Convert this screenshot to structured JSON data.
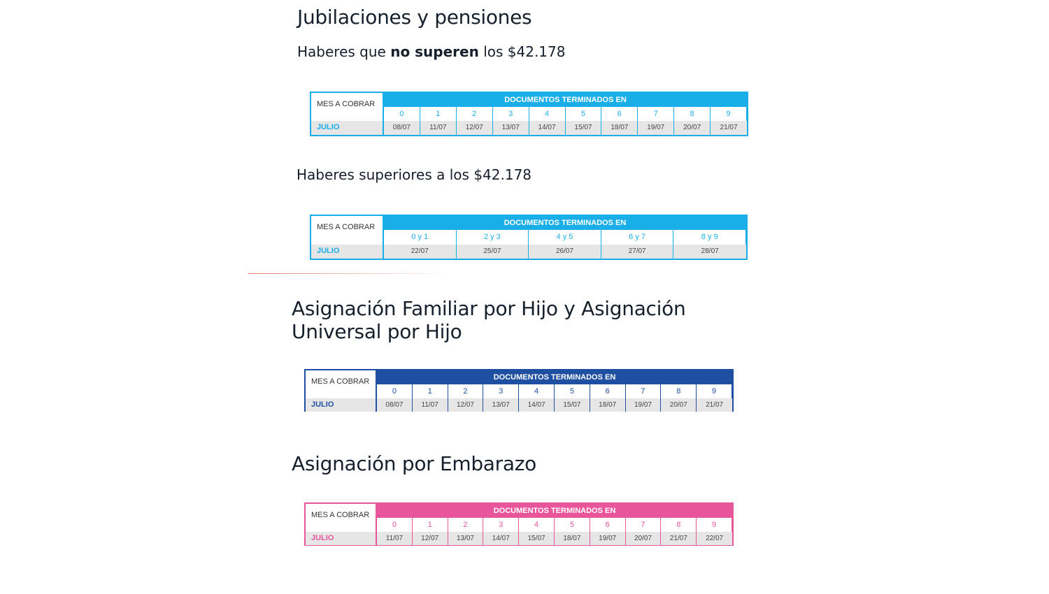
{
  "sections": {
    "jubilaciones": {
      "title": "Jubilaciones y pensiones",
      "sub1": {
        "pre": "Haberes que ",
        "bold": "no superen",
        "post": " los $42.178"
      },
      "sub2": "Haberes superiores a los $42.178"
    },
    "auh": {
      "title_line1": "Asignación Familiar por Hijo y Asignación",
      "title_line2": "Universal por Hijo"
    },
    "embarazo": {
      "title": "Asignación por Embarazo"
    }
  },
  "colors": {
    "cyan": "#19aee8",
    "blue": "#1e4fa0",
    "pink": "#e8559b"
  },
  "tables": [
    {
      "id": "jub-bajo",
      "color": "#19aee8",
      "mes": "MES A COBRAR",
      "header": "DOCUMENTOS TERMINADOS EN",
      "month": "JULIO",
      "digits": [
        "0",
        "1",
        "2",
        "3",
        "4",
        "5",
        "6",
        "7",
        "8",
        "9"
      ],
      "dates": [
        "08/07",
        "11/07",
        "12/07",
        "13/07",
        "14/07",
        "15/07",
        "18/07",
        "19/07",
        "20/07",
        "21/07"
      ]
    },
    {
      "id": "jub-alto",
      "color": "#19aee8",
      "mes": "MES A COBRAR",
      "header": "DOCUMENTOS TERMINADOS EN",
      "month": "JULIO",
      "digits": [
        "0 y 1",
        "2 y 3",
        "4 y 5",
        "6 y 7",
        "8 y 9"
      ],
      "dates": [
        "22/07",
        "25/07",
        "26/07",
        "27/07",
        "28/07"
      ]
    },
    {
      "id": "auh",
      "color": "#1e4fa0",
      "mes": "MES A COBRAR",
      "header": "DOCUMENTOS TERMINADOS EN",
      "month": "JULIO",
      "digits": [
        "0",
        "1",
        "2",
        "3",
        "4",
        "5",
        "6",
        "7",
        "8",
        "9"
      ],
      "dates": [
        "08/07",
        "11/07",
        "12/07",
        "13/07",
        "14/07",
        "15/07",
        "18/07",
        "19/07",
        "20/07",
        "21/07"
      ]
    },
    {
      "id": "embarazo",
      "color": "#e8559b",
      "mes": "MES A COBRAR",
      "header": "DOCUMENTOS TERMINADOS EN",
      "month": "JULIO",
      "digits": [
        "0",
        "1",
        "2",
        "3",
        "4",
        "5",
        "6",
        "7",
        "8",
        "9"
      ],
      "dates": [
        "11/07",
        "12/07",
        "13/07",
        "14/07",
        "15/07",
        "18/07",
        "19/07",
        "20/07",
        "21/07",
        "22/07"
      ]
    }
  ]
}
